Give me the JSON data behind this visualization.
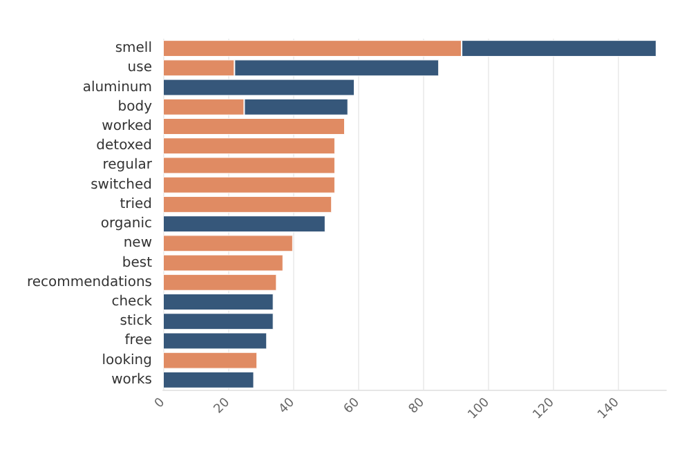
{
  "chart_data": {
    "type": "bar",
    "orientation": "horizontal",
    "stacked": true,
    "categories": [
      "smell",
      "use",
      "aluminum",
      "body",
      "worked",
      "detoxed",
      "regular",
      "switched",
      "tried",
      "organic",
      "new",
      "best",
      "recommendations",
      "check",
      "stick",
      "free",
      "looking",
      "works"
    ],
    "series": [
      {
        "color": "#e08b63",
        "values": [
          92,
          22,
          null,
          25,
          56,
          53,
          53,
          53,
          52,
          null,
          40,
          37,
          35,
          null,
          null,
          null,
          29,
          null
        ]
      },
      {
        "color": "#36577a",
        "values": [
          60,
          63,
          59,
          32,
          null,
          null,
          null,
          null,
          null,
          50,
          null,
          null,
          null,
          34,
          34,
          32,
          null,
          28
        ]
      }
    ],
    "xlim": [
      0,
      155
    ],
    "xticks": [
      0,
      20,
      40,
      60,
      80,
      100,
      120,
      140
    ],
    "grid": "x"
  }
}
